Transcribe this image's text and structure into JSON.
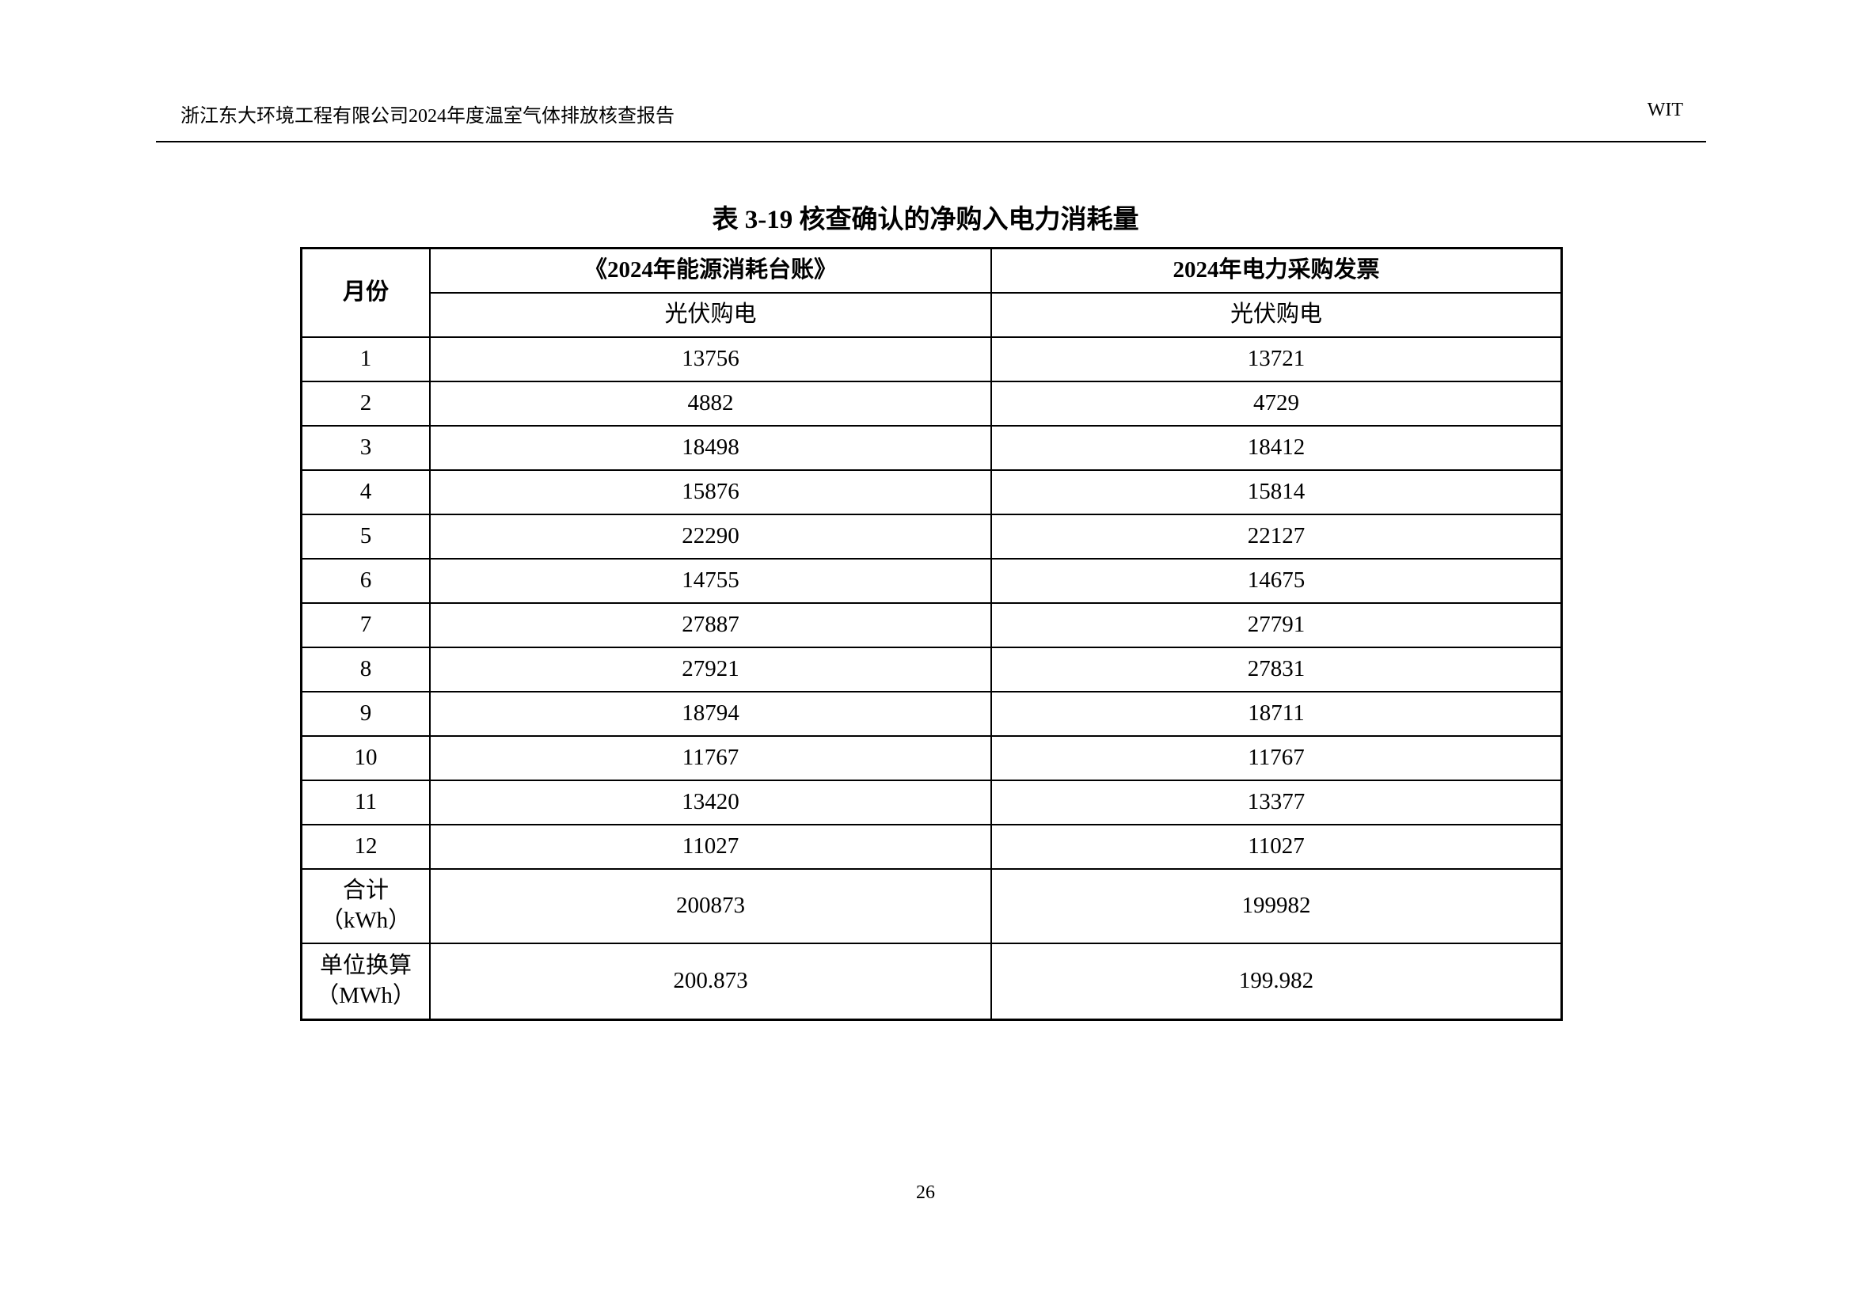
{
  "header": {
    "left": "浙江东大环境工程有限公司2024年度温室气体排放核查报告",
    "right": "WIT"
  },
  "title": "表 3-19 核查确认的净购入电力消耗量",
  "table": {
    "month_header": "月份",
    "col1_header": "《2024年能源消耗台账》",
    "col2_header": "2024年电力采购发票",
    "col1_sub": "光伏购电",
    "col2_sub": "光伏购电",
    "rows": [
      {
        "month": "1",
        "ledger": "13756",
        "invoice": "13721"
      },
      {
        "month": "2",
        "ledger": "4882",
        "invoice": "4729"
      },
      {
        "month": "3",
        "ledger": "18498",
        "invoice": "18412"
      },
      {
        "month": "4",
        "ledger": "15876",
        "invoice": "15814"
      },
      {
        "month": "5",
        "ledger": "22290",
        "invoice": "22127"
      },
      {
        "month": "6",
        "ledger": "14755",
        "invoice": "14675"
      },
      {
        "month": "7",
        "ledger": "27887",
        "invoice": "27791"
      },
      {
        "month": "8",
        "ledger": "27921",
        "invoice": "27831"
      },
      {
        "month": "9",
        "ledger": "18794",
        "invoice": "18711"
      },
      {
        "month": "10",
        "ledger": "11767",
        "invoice": "11767"
      },
      {
        "month": "11",
        "ledger": "13420",
        "invoice": "13377"
      },
      {
        "month": "12",
        "ledger": "11027",
        "invoice": "11027"
      }
    ],
    "total": {
      "label_line1": "合计",
      "label_line2": "（kWh）",
      "ledger": "200873",
      "invoice": "199982"
    },
    "converted": {
      "label_line1": "单位换算",
      "label_line2": "（MWh）",
      "ledger": "200.873",
      "invoice": "199.982"
    }
  },
  "page_number": "26"
}
